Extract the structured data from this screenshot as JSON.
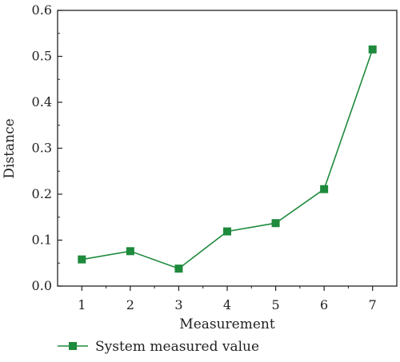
{
  "chart_data": {
    "type": "line",
    "xlabel": "Measurement",
    "ylabel": "Distance",
    "x": [
      1,
      2,
      3,
      4,
      5,
      6,
      7
    ],
    "xlim": [
      0.5,
      7.5
    ],
    "ylim": [
      0.0,
      0.6
    ],
    "xticks": [
      "1",
      "2",
      "3",
      "4",
      "5",
      "6",
      "7"
    ],
    "yticks": [
      "0.0",
      "0.1",
      "0.2",
      "0.3",
      "0.4",
      "0.5",
      "0.6"
    ],
    "grid": false,
    "legend_position": "bottom",
    "series": [
      {
        "name": "System measured value",
        "color": "#1e8a3c",
        "marker": "square",
        "values": [
          0.058,
          0.076,
          0.038,
          0.119,
          0.137,
          0.211,
          0.515
        ]
      }
    ]
  }
}
